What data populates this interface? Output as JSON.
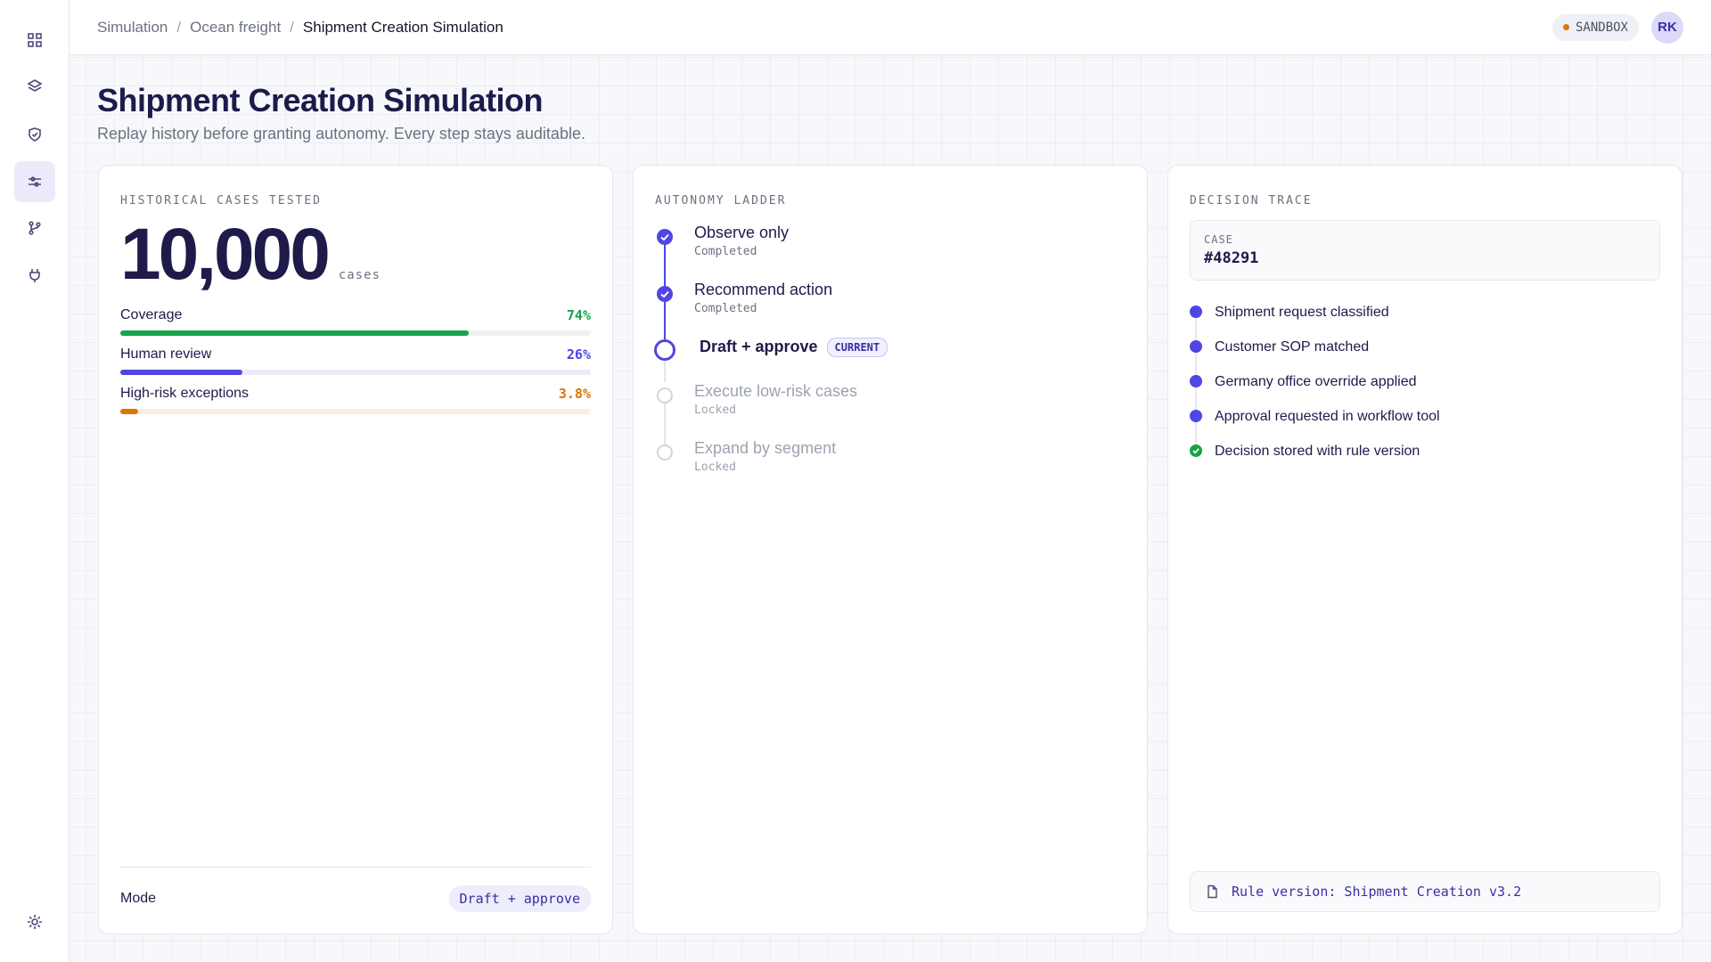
{
  "header": {
    "breadcrumb": [
      "Simulation",
      "Ocean freight",
      "Shipment Creation Simulation"
    ],
    "badge": "SANDBOX",
    "avatar": "RK"
  },
  "page": {
    "title": "Shipment Creation Simulation",
    "subtitle": "Replay history before granting autonomy. Every step stays auditable."
  },
  "cases_card": {
    "label": "HISTORICAL CASES TESTED",
    "count": "10,000",
    "unit": "cases",
    "metrics": [
      {
        "name": "Coverage",
        "value": 74,
        "value_label": "74%",
        "color": "#16a34a",
        "track": "#eef2ef"
      },
      {
        "name": "Human review",
        "value": 26,
        "value_label": "26%",
        "color": "#4f46e5",
        "track": "#ecebfa"
      },
      {
        "name": "High-risk exceptions",
        "value": 3.8,
        "value_label": "3.8%",
        "color": "#d97706",
        "track": "#fbefe2"
      }
    ],
    "mode_label": "Mode",
    "mode": "Draft + approve"
  },
  "ladder": {
    "label": "AUTONOMY LADDER",
    "steps": [
      {
        "name": "Observe only",
        "status": "Completed"
      },
      {
        "name": "Recommend action",
        "status": "Completed"
      },
      {
        "name": "Draft + approve",
        "tag": "CURRENT"
      },
      {
        "name": "Execute low-risk cases",
        "status": "Locked"
      },
      {
        "name": "Expand by segment",
        "status": "Locked"
      }
    ]
  },
  "trace": {
    "label": "DECISION TRACE",
    "case_label": "CASE",
    "case_id": "#48291",
    "events": [
      {
        "text": "Shipment request classified",
        "color": "#4f46e5"
      },
      {
        "text": "Customer SOP matched",
        "color": "#4f46e5"
      },
      {
        "text": "Germany office override applied",
        "color": "#4f46e5"
      },
      {
        "text": "Approval requested in workflow tool",
        "color": "#4f46e5"
      },
      {
        "text": "Decision stored with rule version",
        "color": "#16a34a"
      }
    ],
    "footer": "Rule version: Shipment Creation v3.2"
  }
}
